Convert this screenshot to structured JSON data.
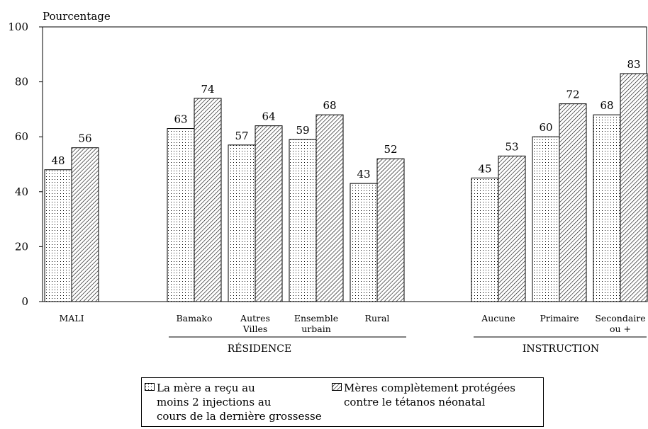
{
  "chart_data": {
    "type": "bar",
    "ylabel": "Pourcentage",
    "ylim": [
      0,
      100
    ],
    "yticks": [
      0,
      20,
      40,
      60,
      80,
      100
    ],
    "grid": false,
    "categories": [
      "MALI",
      "Bamako",
      "Autres Villes",
      "Ensemble urbain",
      "Rural",
      "Aucune",
      "Primaire",
      "Secondaire ou +"
    ],
    "category_lines": [
      [
        "MALI"
      ],
      [
        "Bamako"
      ],
      [
        "Autres",
        "Villes"
      ],
      [
        "Ensemble",
        "urbain"
      ],
      [
        "Rural"
      ],
      [
        "Aucune"
      ],
      [
        "Primaire"
      ],
      [
        "Secondaire",
        "ou +"
      ]
    ],
    "groups": [
      {
        "label": "RÉSIDENCE",
        "categories": [
          "Bamako",
          "Autres Villes",
          "Ensemble urbain",
          "Rural"
        ]
      },
      {
        "label": "INSTRUCTION",
        "categories": [
          "Aucune",
          "Primaire",
          "Secondaire ou +"
        ]
      }
    ],
    "series": [
      {
        "name": "La mère a reçu au moins 2 injections au cours de la dernière grossesse",
        "legend_lines": "La mère a reçu au\nmoins 2 injections au\ncours de la dernière grossesse",
        "pattern": "dots",
        "values": [
          48,
          63,
          57,
          59,
          43,
          45,
          60,
          68
        ]
      },
      {
        "name": "Mères complètement protégées contre le tétanos néonatal",
        "legend_lines": "Mères complètement protégées\ncontre le tétanos néonatal",
        "pattern": "hatch",
        "values": [
          56,
          74,
          64,
          68,
          52,
          53,
          72,
          83
        ]
      }
    ],
    "legend_position": "bottom"
  }
}
